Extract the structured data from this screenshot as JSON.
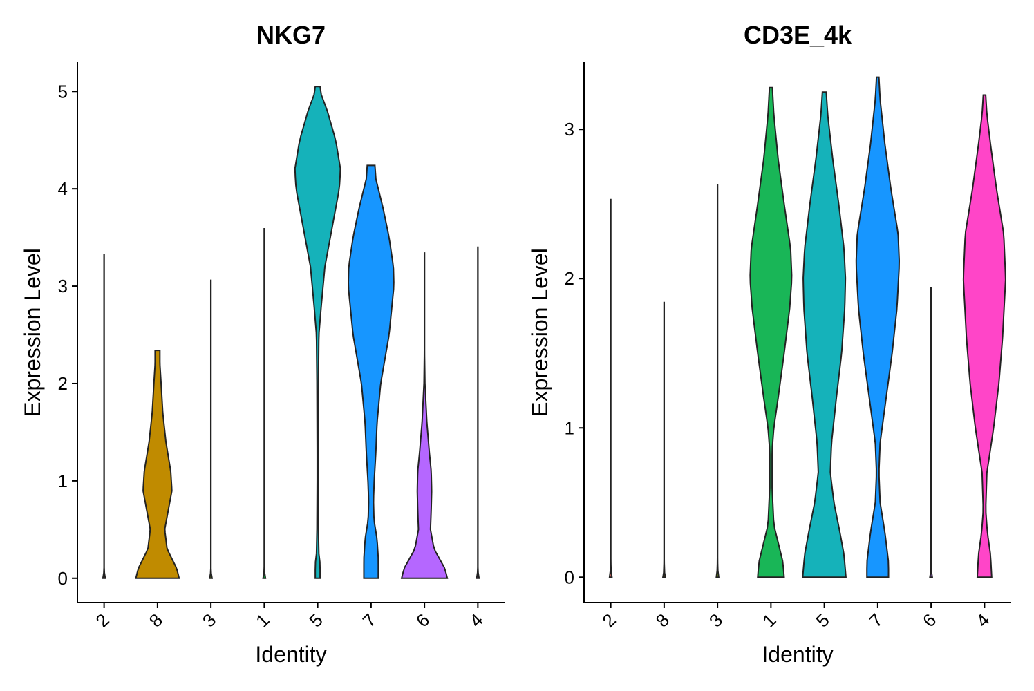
{
  "chart_data": [
    {
      "type": "violin",
      "title": "NKG7",
      "xlabel": "Identity",
      "ylabel": "Expression Level",
      "categories": [
        "2",
        "8",
        "3",
        "1",
        "5",
        "7",
        "6",
        "4"
      ],
      "colors": [
        "#F8766D",
        "#C08B00",
        "#7CAE00",
        "#00BA38",
        "#15B2BA",
        "#1796FF",
        "#B567FF",
        "#FF45C8"
      ],
      "yticks": [
        0,
        1,
        2,
        3,
        4,
        5
      ],
      "ylim": [
        -0.25,
        5.3
      ],
      "violins": [
        {
          "max": 3.32,
          "filled": false,
          "profile": [
            [
              0,
              0.05
            ],
            [
              0.02,
              0.02
            ],
            [
              0.1,
              0.004
            ],
            [
              3.32,
              0.004
            ]
          ]
        },
        {
          "max": 2.34,
          "filled": true,
          "profile": [
            [
              0,
              0.9
            ],
            [
              0.1,
              0.8
            ],
            [
              0.3,
              0.4
            ],
            [
              0.5,
              0.3
            ],
            [
              0.7,
              0.45
            ],
            [
              0.9,
              0.6
            ],
            [
              1.1,
              0.55
            ],
            [
              1.4,
              0.35
            ],
            [
              1.7,
              0.22
            ],
            [
              2.0,
              0.15
            ],
            [
              2.2,
              0.1
            ],
            [
              2.34,
              0.1
            ]
          ]
        },
        {
          "max": 3.06,
          "filled": false,
          "profile": [
            [
              0,
              0.05
            ],
            [
              0.02,
              0.02
            ],
            [
              0.1,
              0.004
            ],
            [
              3.06,
              0.004
            ]
          ]
        },
        {
          "max": 3.59,
          "filled": false,
          "profile": [
            [
              0,
              0.05
            ],
            [
              0.02,
              0.02
            ],
            [
              0.1,
              0.004
            ],
            [
              3.59,
              0.004
            ]
          ]
        },
        {
          "max": 5.05,
          "filled": true,
          "profile": [
            [
              0,
              0.1
            ],
            [
              0.15,
              0.1
            ],
            [
              0.25,
              0.05
            ],
            [
              0.5,
              0.03
            ],
            [
              1.0,
              0.02
            ],
            [
              1.3,
              0.02
            ],
            [
              2.0,
              0.03
            ],
            [
              2.5,
              0.05
            ],
            [
              2.8,
              0.15
            ],
            [
              3.2,
              0.3
            ],
            [
              3.6,
              0.6
            ],
            [
              4.0,
              0.9
            ],
            [
              4.2,
              0.95
            ],
            [
              4.5,
              0.75
            ],
            [
              4.8,
              0.4
            ],
            [
              5.0,
              0.1
            ],
            [
              5.05,
              0.1
            ]
          ]
        },
        {
          "max": 4.24,
          "filled": true,
          "profile": [
            [
              0,
              0.3
            ],
            [
              0.2,
              0.3
            ],
            [
              0.4,
              0.25
            ],
            [
              0.6,
              0.12
            ],
            [
              0.8,
              0.1
            ],
            [
              1.0,
              0.13
            ],
            [
              1.3,
              0.2
            ],
            [
              1.6,
              0.25
            ],
            [
              2.0,
              0.4
            ],
            [
              2.5,
              0.75
            ],
            [
              3.0,
              0.95
            ],
            [
              3.2,
              0.93
            ],
            [
              3.5,
              0.75
            ],
            [
              3.8,
              0.5
            ],
            [
              4.1,
              0.2
            ],
            [
              4.24,
              0.16
            ]
          ]
        },
        {
          "max": 3.34,
          "filled": true,
          "profile": [
            [
              0,
              0.95
            ],
            [
              0.1,
              0.85
            ],
            [
              0.3,
              0.4
            ],
            [
              0.5,
              0.25
            ],
            [
              0.7,
              0.28
            ],
            [
              0.9,
              0.3
            ],
            [
              1.1,
              0.28
            ],
            [
              1.3,
              0.2
            ],
            [
              1.6,
              0.1
            ],
            [
              2.0,
              0.02
            ],
            [
              2.3,
              0.004
            ],
            [
              3.34,
              0.004
            ]
          ]
        },
        {
          "max": 3.4,
          "filled": false,
          "profile": [
            [
              0,
              0.05
            ],
            [
              0.02,
              0.02
            ],
            [
              0.1,
              0.004
            ],
            [
              3.4,
              0.004
            ]
          ]
        }
      ]
    },
    {
      "type": "violin",
      "title": "CD3E_4k",
      "xlabel": "Identity",
      "ylabel": "Expression Level",
      "categories": [
        "2",
        "8",
        "3",
        "1",
        "5",
        "7",
        "6",
        "4"
      ],
      "colors": [
        "#F8766D",
        "#C08B00",
        "#7CAE00",
        "#19B657",
        "#15B2BA",
        "#1796FF",
        "#B567FF",
        "#FF45C8"
      ],
      "yticks": [
        0,
        1,
        2,
        3
      ],
      "ylim": [
        -0.17,
        3.45
      ],
      "violins": [
        {
          "max": 2.53,
          "filled": false,
          "profile": [
            [
              0,
              0.05
            ],
            [
              0.02,
              0.02
            ],
            [
              0.1,
              0.004
            ],
            [
              2.53,
              0.004
            ]
          ]
        },
        {
          "max": 1.84,
          "filled": false,
          "profile": [
            [
              0,
              0.05
            ],
            [
              0.02,
              0.02
            ],
            [
              0.1,
              0.004
            ],
            [
              1.84,
              0.004
            ]
          ]
        },
        {
          "max": 2.63,
          "filled": false,
          "profile": [
            [
              0,
              0.05
            ],
            [
              0.02,
              0.02
            ],
            [
              0.1,
              0.004
            ],
            [
              2.63,
              0.004
            ]
          ]
        },
        {
          "max": 3.28,
          "filled": true,
          "profile": [
            [
              0,
              0.55
            ],
            [
              0.1,
              0.5
            ],
            [
              0.2,
              0.35
            ],
            [
              0.35,
              0.12
            ],
            [
              0.6,
              0.05
            ],
            [
              0.85,
              0.05
            ],
            [
              1.0,
              0.12
            ],
            [
              1.2,
              0.3
            ],
            [
              1.5,
              0.55
            ],
            [
              1.8,
              0.78
            ],
            [
              2.0,
              0.87
            ],
            [
              2.2,
              0.82
            ],
            [
              2.5,
              0.55
            ],
            [
              2.8,
              0.3
            ],
            [
              3.1,
              0.12
            ],
            [
              3.28,
              0.06
            ]
          ]
        },
        {
          "max": 3.25,
          "filled": true,
          "profile": [
            [
              0,
              0.9
            ],
            [
              0.15,
              0.82
            ],
            [
              0.3,
              0.65
            ],
            [
              0.5,
              0.4
            ],
            [
              0.7,
              0.25
            ],
            [
              0.9,
              0.3
            ],
            [
              1.2,
              0.5
            ],
            [
              1.5,
              0.72
            ],
            [
              1.8,
              0.85
            ],
            [
              2.0,
              0.88
            ],
            [
              2.2,
              0.82
            ],
            [
              2.5,
              0.6
            ],
            [
              2.8,
              0.35
            ],
            [
              3.1,
              0.14
            ],
            [
              3.25,
              0.08
            ]
          ]
        },
        {
          "max": 3.35,
          "filled": true,
          "profile": [
            [
              0,
              0.45
            ],
            [
              0.1,
              0.45
            ],
            [
              0.3,
              0.3
            ],
            [
              0.5,
              0.1
            ],
            [
              0.7,
              0.05
            ],
            [
              0.9,
              0.1
            ],
            [
              1.2,
              0.35
            ],
            [
              1.5,
              0.6
            ],
            [
              1.8,
              0.8
            ],
            [
              2.1,
              0.9
            ],
            [
              2.3,
              0.85
            ],
            [
              2.6,
              0.55
            ],
            [
              2.9,
              0.3
            ],
            [
              3.2,
              0.1
            ],
            [
              3.35,
              0.05
            ]
          ]
        },
        {
          "max": 1.94,
          "filled": false,
          "profile": [
            [
              0,
              0.05
            ],
            [
              0.02,
              0.02
            ],
            [
              0.1,
              0.004
            ],
            [
              1.94,
              0.004
            ]
          ]
        },
        {
          "max": 3.23,
          "filled": true,
          "profile": [
            [
              0,
              0.3
            ],
            [
              0.15,
              0.25
            ],
            [
              0.3,
              0.12
            ],
            [
              0.45,
              0.05
            ],
            [
              0.7,
              0.1
            ],
            [
              1.0,
              0.38
            ],
            [
              1.3,
              0.6
            ],
            [
              1.6,
              0.75
            ],
            [
              2.0,
              0.88
            ],
            [
              2.3,
              0.8
            ],
            [
              2.6,
              0.5
            ],
            [
              2.9,
              0.25
            ],
            [
              3.1,
              0.1
            ],
            [
              3.23,
              0.05
            ]
          ]
        }
      ]
    }
  ]
}
